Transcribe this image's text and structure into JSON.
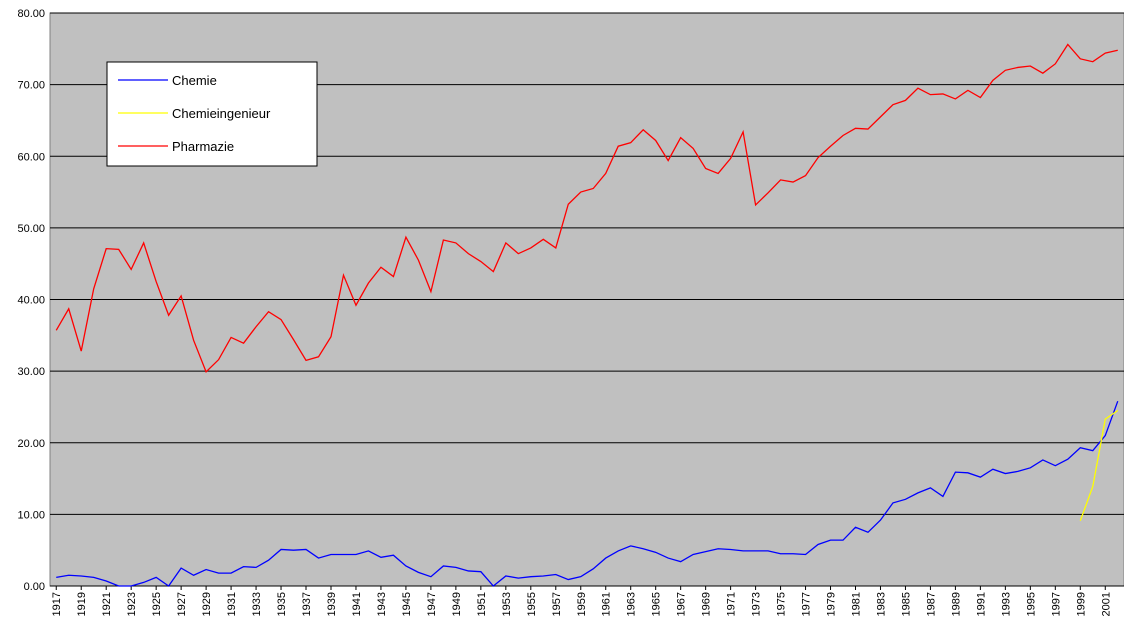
{
  "chart_data": {
    "type": "line",
    "categories": [
      "1917",
      null,
      "1919",
      null,
      "1921",
      null,
      "1923",
      null,
      "1925",
      null,
      "1927",
      null,
      "1929",
      null,
      "1931",
      null,
      "1933",
      null,
      "1935",
      null,
      "1937",
      null,
      "1939",
      null,
      "1941",
      null,
      "1943",
      null,
      "1945",
      null,
      "1947",
      null,
      "1949",
      null,
      "1951",
      null,
      "1953",
      null,
      "1955",
      null,
      "1957",
      null,
      "1959",
      null,
      "1961",
      null,
      "1963",
      null,
      "1965",
      null,
      "1967",
      null,
      "1969",
      null,
      "1971",
      null,
      "1973",
      null,
      "1975",
      null,
      "1977",
      null,
      "1979",
      null,
      "1981",
      null,
      "1983",
      null,
      "1985",
      null,
      "1987",
      null,
      "1989",
      null,
      "1991",
      null,
      "1993",
      null,
      "1995",
      null,
      "1997",
      null,
      "1999",
      null,
      "2001",
      null
    ],
    "series": [
      {
        "name": "Chemie",
        "color": "#0000ff",
        "values": [
          1.2,
          1.5,
          1.4,
          1.2,
          0.7,
          0.0,
          0.0,
          0.5,
          1.2,
          0.0,
          2.5,
          1.5,
          2.3,
          1.8,
          1.8,
          2.7,
          2.6,
          3.6,
          5.1,
          5.0,
          5.1,
          3.9,
          4.4,
          4.4,
          4.4,
          4.9,
          4.0,
          4.3,
          2.8,
          1.9,
          1.3,
          2.8,
          2.6,
          2.1,
          2.0,
          0.0,
          1.4,
          1.1,
          1.3,
          1.4,
          1.6,
          0.9,
          1.3,
          2.4,
          3.9,
          4.9,
          5.6,
          5.2,
          4.7,
          3.9,
          3.4,
          4.4,
          4.8,
          5.2,
          5.1,
          4.9,
          4.9,
          4.9,
          4.5,
          4.5,
          4.4,
          5.8,
          6.4,
          6.4,
          8.2,
          7.5,
          9.2,
          11.6,
          12.1,
          13.0,
          13.7,
          12.5,
          15.9,
          15.8,
          15.2,
          16.3,
          15.7,
          16.0,
          16.5,
          17.6,
          16.8,
          17.7,
          19.3,
          18.9,
          21.0,
          25.8
        ]
      },
      {
        "name": "Chemieingenieur",
        "color": "#ffff00",
        "values": [
          null,
          null,
          null,
          null,
          null,
          null,
          null,
          null,
          null,
          null,
          null,
          null,
          null,
          null,
          null,
          null,
          null,
          null,
          null,
          null,
          null,
          null,
          null,
          null,
          null,
          null,
          null,
          null,
          null,
          null,
          null,
          null,
          null,
          null,
          null,
          null,
          null,
          null,
          null,
          null,
          null,
          null,
          null,
          null,
          null,
          null,
          null,
          null,
          null,
          null,
          null,
          null,
          null,
          null,
          null,
          null,
          null,
          null,
          null,
          null,
          null,
          null,
          null,
          null,
          null,
          null,
          null,
          null,
          null,
          null,
          null,
          null,
          null,
          null,
          null,
          null,
          null,
          null,
          null,
          null,
          null,
          null,
          9.1,
          13.9,
          23.3,
          24.5
        ]
      },
      {
        "name": "Pharmazie",
        "color": "#ff0000",
        "values": [
          35.7,
          38.7,
          32.8,
          41.5,
          47.1,
          47.0,
          44.2,
          47.9,
          42.5,
          37.8,
          40.5,
          34.3,
          29.9,
          31.6,
          34.7,
          33.9,
          36.2,
          38.3,
          37.2,
          34.4,
          31.5,
          32.0,
          34.8,
          43.4,
          39.2,
          42.3,
          44.5,
          43.2,
          48.7,
          45.5,
          41.1,
          48.3,
          47.9,
          46.4,
          45.3,
          43.9,
          47.9,
          46.4,
          47.2,
          48.4,
          47.2,
          53.3,
          55.0,
          55.5,
          57.6,
          61.4,
          61.9,
          63.7,
          62.2,
          59.4,
          62.6,
          61.1,
          58.3,
          57.6,
          59.7,
          63.4,
          53.2,
          54.9,
          56.7,
          56.4,
          57.3,
          59.8,
          61.4,
          62.9,
          63.9,
          63.8,
          65.5,
          67.2,
          67.8,
          69.5,
          68.6,
          68.7,
          68.0,
          69.2,
          68.2,
          70.6,
          72.0,
          72.4,
          72.6,
          71.6,
          72.9,
          75.6,
          73.6,
          73.2,
          74.4,
          74.8
        ]
      }
    ],
    "ylim": [
      0,
      80
    ],
    "yticks": [
      {
        "value": 0,
        "label": "0.00"
      },
      {
        "value": 10,
        "label": "10.00"
      },
      {
        "value": 20,
        "label": "20.00"
      },
      {
        "value": 30,
        "label": "30.00"
      },
      {
        "value": 40,
        "label": "40.00"
      },
      {
        "value": 50,
        "label": "50.00"
      },
      {
        "value": 60,
        "label": "60.00"
      },
      {
        "value": 70,
        "label": "70.00"
      },
      {
        "value": 80,
        "label": "80.00"
      }
    ],
    "grid": true,
    "background": "#c0c0c0",
    "legend": "top-left"
  }
}
